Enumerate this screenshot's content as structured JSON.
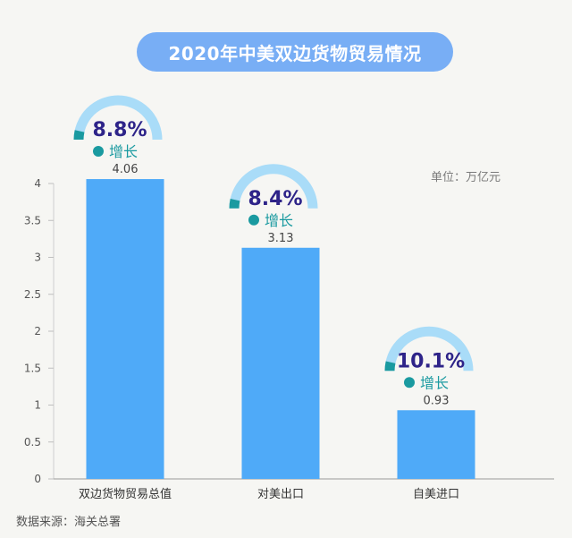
{
  "title": "2020年中美双边货物贸易情况",
  "unit_label": "单位：万亿元",
  "source_label": "数据来源：海关总署",
  "colors": {
    "bar": "#4faaf8",
    "title_bg": "#78aef5",
    "gauge_light": "#a9dcf8",
    "gauge_dark": "#1a9aa0",
    "growth_text": "#2e2489",
    "growth_label": "#1a9aa0"
  },
  "chart_data": {
    "type": "bar",
    "title": "2020年中美双边货物贸易情况",
    "ylabel": "单位：万亿元",
    "categories": [
      "双边货物贸易总值",
      "对美出口",
      "自美进口"
    ],
    "values": [
      4.06,
      3.13,
      0.93
    ],
    "value_labels": [
      "4.06",
      "3.13",
      "0.93"
    ],
    "growth": [
      "8.8%",
      "8.4%",
      "10.1%"
    ],
    "growth_label": "增长",
    "ylim": [
      0,
      4
    ],
    "yticks": [
      "0",
      "0.5",
      "1",
      "1.5",
      "2",
      "2.5",
      "3",
      "3.5",
      "4"
    ],
    "grid": false,
    "legend": "none"
  }
}
